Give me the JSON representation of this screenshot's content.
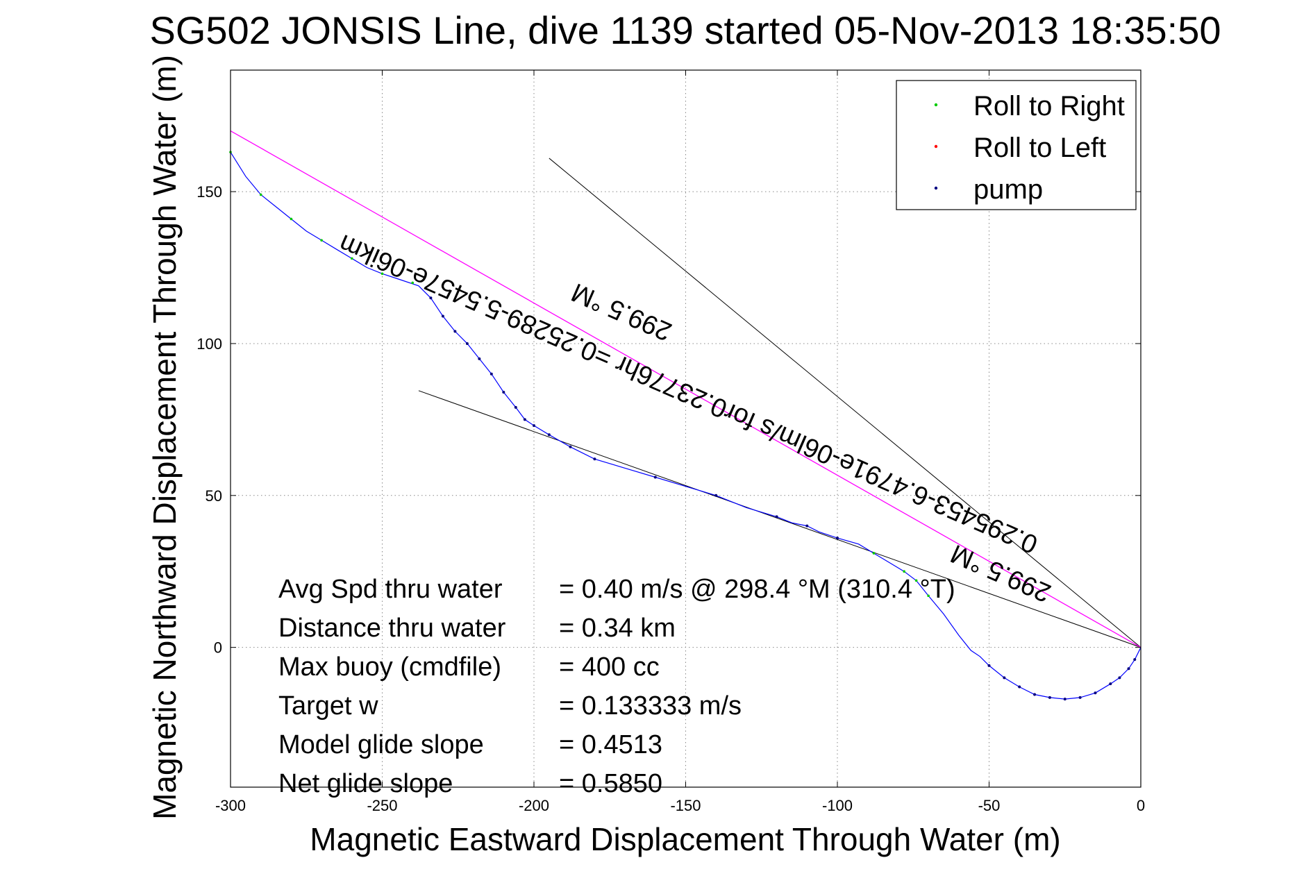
{
  "chart_data": {
    "type": "line",
    "title": "SG502 JONSIS Line, dive 1139 started 05-Nov-2013 18:35:50",
    "xlabel": "Magnetic Eastward Displacement Through Water (m)",
    "ylabel": "Magnetic Northward Displacement Through Water (m)",
    "xlim": [
      -300,
      0
    ],
    "ylim": [
      -46,
      190
    ],
    "xticks": [
      -300,
      -250,
      -200,
      -150,
      -100,
      -50,
      0
    ],
    "yticks": [
      0,
      50,
      100,
      150
    ],
    "xtick_labels": [
      "-300",
      "-250",
      "-200",
      "-150",
      "-100",
      "-50",
      "0"
    ],
    "ytick_labels": [
      "0",
      "50",
      "100",
      "150"
    ],
    "grid": true,
    "legend": {
      "placement": "top-right",
      "entries": [
        "Roll to Right",
        "Roll to Left",
        "pump"
      ]
    },
    "colors": {
      "track": "#0000ff",
      "roll_right": "#00cc00",
      "roll_left": "#ff0000",
      "pump": "#000080",
      "heading_line": "#ff00ff",
      "fit_lines": "#000000"
    },
    "track": {
      "x": [
        0,
        -2,
        -4,
        -7,
        -10,
        -15,
        -20,
        -25,
        -30,
        -35,
        -40,
        -45,
        -50,
        -53,
        -56,
        -60,
        -65,
        -70,
        -74,
        -78,
        -83,
        -88,
        -93,
        -100,
        -106,
        -110,
        -115,
        -120,
        -130,
        -140,
        -150,
        -160,
        -170,
        -180,
        -188,
        -195,
        -200,
        -203,
        -206,
        -210,
        -214,
        -218,
        -222,
        -226,
        -230,
        -234,
        -238,
        -244,
        -250,
        -255,
        -260,
        -265,
        -270,
        -275,
        -280,
        -285,
        -290,
        -295,
        -300
      ],
      "y": [
        0,
        -4,
        -7,
        -10,
        -12,
        -15,
        -16.5,
        -17,
        -16.5,
        -15.5,
        -13,
        -10,
        -6,
        -3,
        -1,
        4,
        11,
        17,
        22,
        25,
        28,
        31,
        34,
        36,
        38,
        40,
        41,
        43,
        46,
        50,
        53,
        56,
        59,
        62,
        66,
        70,
        73,
        75,
        79,
        84,
        90,
        95,
        100,
        104,
        109,
        115,
        119,
        121,
        123,
        125,
        128,
        131,
        134,
        137,
        141,
        145,
        149,
        155,
        163
      ]
    },
    "roll_right": {
      "x": [
        -70,
        -74,
        -78,
        -88,
        -240,
        -250,
        -260,
        -270,
        -280,
        -290,
        -300
      ],
      "y": [
        17,
        22,
        25,
        31,
        120,
        123,
        128,
        134,
        141,
        149,
        163
      ]
    },
    "roll_left": {
      "x": [
        -4,
        -10,
        -15,
        -20,
        -25,
        -30,
        -35,
        -40,
        -45,
        -50
      ],
      "y": [
        -7,
        -12,
        -15,
        -16.5,
        -17,
        -16.5,
        -15.5,
        -13,
        -10,
        -6
      ]
    },
    "pump": {
      "x": [
        -2,
        -4,
        -7,
        -10,
        -15,
        -20,
        -25,
        -30,
        -35,
        -40,
        -45,
        -50,
        -100,
        -110,
        -120,
        -140,
        -160,
        -180,
        -188,
        -195,
        -200,
        -203,
        -206,
        -210,
        -214,
        -218,
        -222,
        -226,
        -230,
        -234
      ],
      "y": [
        -4,
        -7,
        -10,
        -12,
        -15,
        -16.5,
        -17,
        -16.5,
        -15.5,
        -13,
        -10,
        -6,
        36,
        40,
        43,
        50,
        56,
        62,
        66,
        70,
        73,
        75,
        79,
        84,
        90,
        95,
        100,
        104,
        109,
        115
      ]
    },
    "lines": [
      {
        "from": [
          -238,
          84.5
        ],
        "to": [
          0,
          0
        ]
      },
      {
        "from": [
          -195,
          161
        ],
        "to": [
          0,
          0
        ]
      },
      {
        "from": [
          -300,
          170
        ],
        "to": [
          0,
          0
        ],
        "style": "heading"
      }
    ],
    "rotated_annotations": [
      {
        "text": "0.295453-6.4791e-06lm/s for0.23776hr =0.25289-5.5457e-06ikm",
        "x": -148,
        "y": 86
      },
      {
        "text": "299.5 °M",
        "x": -170,
        "y": 113
      },
      {
        "text": "299.5 °M",
        "x": -45,
        "y": 27
      }
    ],
    "stats": [
      {
        "label": "Avg Spd thru water",
        "value": "=  0.40 m/s @ 298.4  °M (310.4  °T)"
      },
      {
        "label": "Distance thru water",
        "value": "=  0.34 km"
      },
      {
        "label": "Max buoy (cmdfile)",
        "value": "= 400 cc"
      },
      {
        "label": "Target w",
        "value": "= 0.133333 m/s"
      },
      {
        "label": "Model glide slope",
        "value": "= 0.4513"
      },
      {
        "label": "Net glide slope",
        "value": "= 0.5850"
      }
    ]
  }
}
